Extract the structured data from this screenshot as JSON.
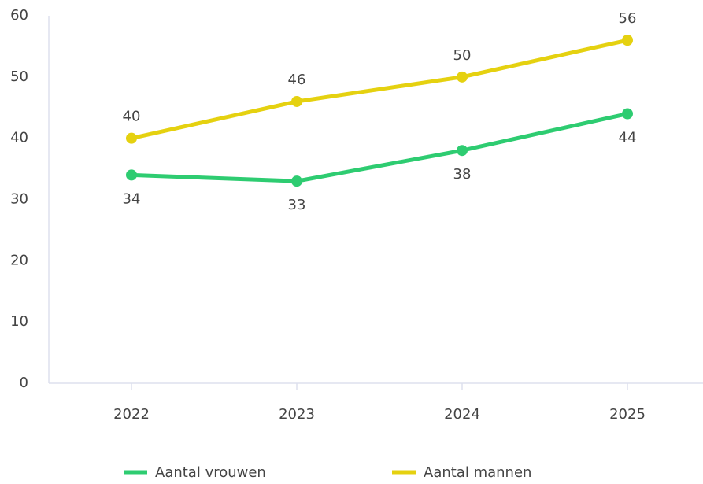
{
  "chart_data": {
    "type": "line",
    "categories": [
      "2022",
      "2023",
      "2024",
      "2025"
    ],
    "series": [
      {
        "name": "Aantal vrouwen",
        "color": "#2ecc71",
        "values": [
          34,
          33,
          38,
          44
        ],
        "label_position": "below"
      },
      {
        "name": "Aantal mannen",
        "color": "#e5d110",
        "values": [
          40,
          46,
          50,
          56
        ],
        "label_position": "above"
      }
    ],
    "ylim": [
      0,
      60
    ],
    "yticks": [
      0,
      10,
      20,
      30,
      40,
      50,
      60
    ],
    "grid": false,
    "legend": "bottom"
  }
}
